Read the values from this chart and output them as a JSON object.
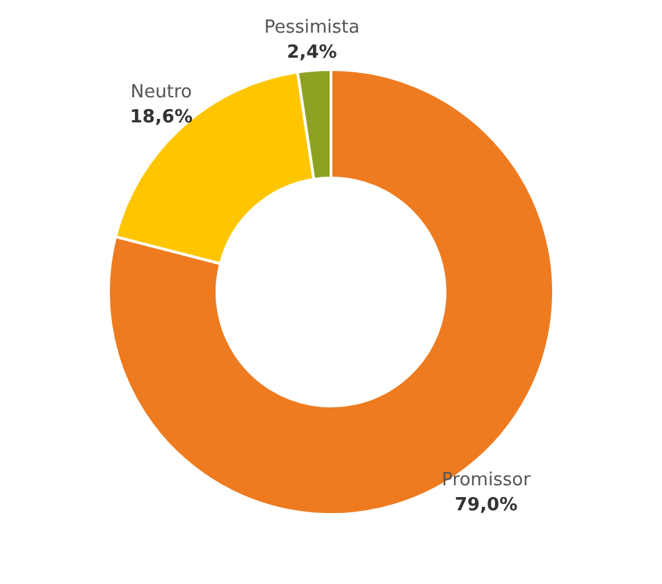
{
  "chart_data": {
    "type": "donut",
    "categories": [
      "Promissor",
      "Neutro",
      "Pessimista"
    ],
    "values": [
      79.0,
      18.6,
      2.4
    ],
    "colors": [
      "#ee7b1f",
      "#ffc600",
      "#8fa122"
    ],
    "value_labels": [
      "79,0%",
      "18,6%",
      "2,4%"
    ],
    "legend": false
  }
}
